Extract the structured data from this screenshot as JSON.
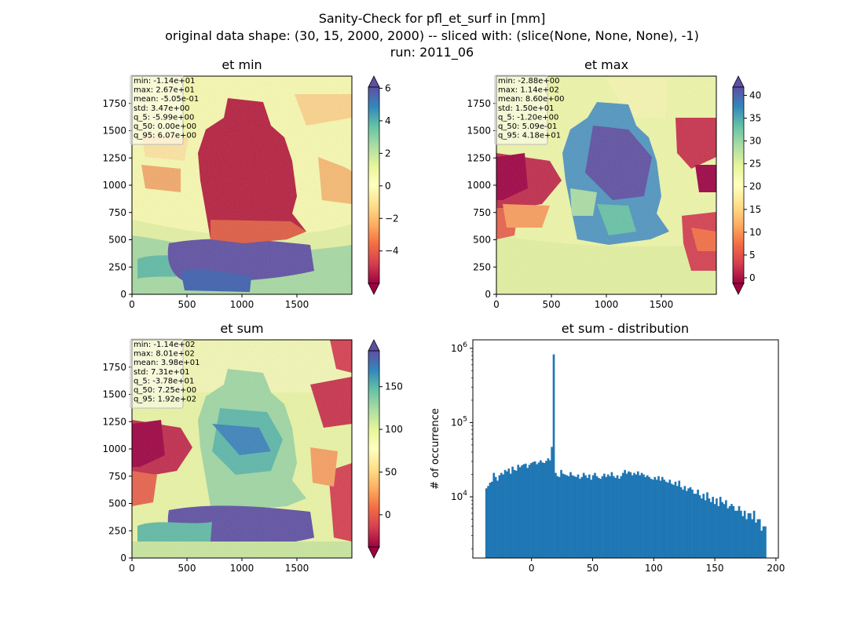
{
  "suptitle": [
    "Sanity-Check for pfl_et_surf in [mm]",
    "original data shape: (30, 15, 2000, 2000) -- sliced with: (slice(None, None, None), -1)",
    "run: 2011_06"
  ],
  "chart_data": [
    {
      "type": "heatmap",
      "title": "et min",
      "xlim": [
        0,
        2000
      ],
      "ylim": [
        0,
        2000
      ],
      "x_ticks": [
        0,
        500,
        1000,
        1500
      ],
      "y_ticks": [
        0,
        250,
        500,
        750,
        1000,
        1250,
        1500,
        1750
      ],
      "colorbar": {
        "min": -5.99,
        "max": 6.07,
        "ticks": [
          -4,
          -2,
          0,
          2,
          4,
          6
        ],
        "extend": "both",
        "colormap": "Spectral"
      },
      "stats": [
        "min: -1.14e+01",
        "max: 2.67e+01",
        "mean: -5.05e-01",
        "std: 3.47e+00",
        "q_5: -5.99e+00",
        "q_50: 0.00e+00",
        "q_95: 6.07e+00"
      ]
    },
    {
      "type": "heatmap",
      "title": "et max",
      "xlim": [
        0,
        2000
      ],
      "ylim": [
        0,
        2000
      ],
      "x_ticks": [
        0,
        500,
        1000,
        1500
      ],
      "y_ticks": [
        0,
        250,
        500,
        750,
        1000,
        1250,
        1500,
        1750
      ],
      "colorbar": {
        "min": -1.2,
        "max": 41.8,
        "ticks": [
          0,
          5,
          10,
          15,
          20,
          25,
          30,
          35,
          40
        ],
        "extend": "both",
        "colormap": "Spectral"
      },
      "stats": [
        "min: -2.88e+00",
        "max: 1.14e+02",
        "mean: 8.60e+00",
        "std: 1.50e+01",
        "q_5: -1.20e+00",
        "q_50: 5.09e-01",
        "q_95: 4.18e+01"
      ]
    },
    {
      "type": "heatmap",
      "title": "et sum",
      "xlim": [
        0,
        2000
      ],
      "ylim": [
        0,
        2000
      ],
      "x_ticks": [
        0,
        500,
        1000,
        1500
      ],
      "y_ticks": [
        0,
        250,
        500,
        750,
        1000,
        1250,
        1500,
        1750
      ],
      "colorbar": {
        "min": -37.8,
        "max": 192,
        "ticks": [
          0,
          50,
          100,
          150
        ],
        "extend": "both",
        "colormap": "Spectral"
      },
      "stats": [
        "min: -1.14e+02",
        "max: 8.01e+02",
        "mean: 3.98e+01",
        "std: 7.31e+01",
        "q_5: -3.78e+01",
        "q_50: 7.25e+00",
        "q_95: 1.92e+02"
      ]
    },
    {
      "type": "bar",
      "title": "et sum - distribution",
      "xlabel": "",
      "ylabel": "# of occurrence",
      "xlim": [
        -48,
        202
      ],
      "x_ticks": [
        0,
        50,
        100,
        150,
        200
      ],
      "y_scale": "log",
      "ylim": [
        1500,
        1300000
      ],
      "y_ticks": [
        {
          "base": "10",
          "exp": "4",
          "value": 10000
        },
        {
          "base": "10",
          "exp": "5",
          "value": 100000
        },
        {
          "base": "10",
          "exp": "6",
          "value": 1000000
        }
      ],
      "bins": {
        "start": -37.8,
        "end": 192,
        "count": 150
      },
      "values": [
        13000,
        14000,
        15500,
        16000,
        21000,
        18500,
        16500,
        19500,
        21000,
        20000,
        23000,
        22000,
        24000,
        20500,
        25500,
        23000,
        22500,
        27000,
        25000,
        26500,
        27500,
        28000,
        24500,
        27000,
        28500,
        29500,
        30000,
        27500,
        29000,
        31000,
        29000,
        28500,
        30500,
        33000,
        31000,
        47000,
        828000,
        21000,
        19000,
        18500,
        23000,
        20500,
        20000,
        19500,
        19000,
        21500,
        19500,
        19000,
        18500,
        20000,
        17500,
        18500,
        21000,
        19500,
        18000,
        20000,
        17000,
        19500,
        21000,
        19000,
        18000,
        17500,
        19000,
        20500,
        18500,
        20000,
        19000,
        21500,
        19000,
        18000,
        19500,
        17500,
        19000,
        21000,
        23000,
        20500,
        22000,
        21500,
        19500,
        21000,
        20000,
        22000,
        19500,
        21000,
        20000,
        18500,
        19500,
        18500,
        17500,
        17000,
        18500,
        17000,
        19000,
        16500,
        18500,
        17000,
        16000,
        15500,
        17000,
        15000,
        14500,
        16000,
        14000,
        16500,
        13500,
        12500,
        14000,
        12000,
        13000,
        13500,
        12500,
        11000,
        11000,
        12500,
        10500,
        9500,
        11000,
        9000,
        11500,
        9500,
        8500,
        10000,
        8000,
        9500,
        7500,
        10000,
        8500,
        8000,
        9000,
        7000,
        7500,
        8000,
        7500,
        6500,
        6500,
        7500,
        6500,
        5500,
        6500,
        5000,
        6000,
        6000,
        5000,
        6500,
        4500,
        5000,
        5000,
        3500,
        4000,
        4000
      ]
    }
  ]
}
